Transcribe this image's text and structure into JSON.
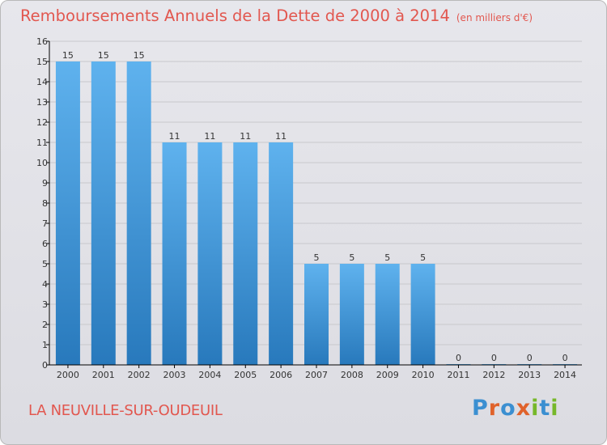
{
  "header": {
    "title": "Remboursements Annuels de la Dette de 2000 à 2014",
    "unit": "(en milliers d'€)"
  },
  "footer": {
    "town": "LA NEUVILLE-SUR-OUDEUIL",
    "brand": "Proxiti",
    "brand_colors": [
      "#3b8fd1",
      "#e0622b",
      "#3b8fd1",
      "#e0622b",
      "#76b82a",
      "#3b8fd1",
      "#76b82a"
    ]
  },
  "colors": {
    "title": "#e2574f",
    "bar_top": "#5fb2ee",
    "bar_bottom": "#2879bc",
    "grid": "#c8c8cc",
    "axis": "#000000",
    "text": "#333333"
  },
  "chart_data": {
    "type": "bar",
    "title": "Remboursements Annuels de la Dette de 2000 à 2014",
    "xlabel": "",
    "ylabel": "",
    "unit": "(en milliers d'€)",
    "ylim": [
      0,
      16
    ],
    "yticks": [
      "0",
      "1",
      "2",
      "3",
      "4",
      "5",
      "6",
      "7",
      "8",
      "9",
      "10",
      "11",
      "12",
      "13",
      "14",
      "15",
      "16"
    ],
    "categories": [
      "2000",
      "2001",
      "2002",
      "2003",
      "2004",
      "2005",
      "2006",
      "2007",
      "2008",
      "2009",
      "2010",
      "2011",
      "2012",
      "2013",
      "2014"
    ],
    "values": [
      15,
      15,
      15,
      11,
      11,
      11,
      11,
      5,
      5,
      5,
      5,
      0,
      0,
      0,
      0
    ],
    "value_labels": [
      "15",
      "15",
      "15",
      "11",
      "11",
      "11",
      "11",
      "5",
      "5",
      "5",
      "5",
      "0",
      "0",
      "0",
      "0"
    ],
    "grid": true,
    "legend": "none"
  }
}
